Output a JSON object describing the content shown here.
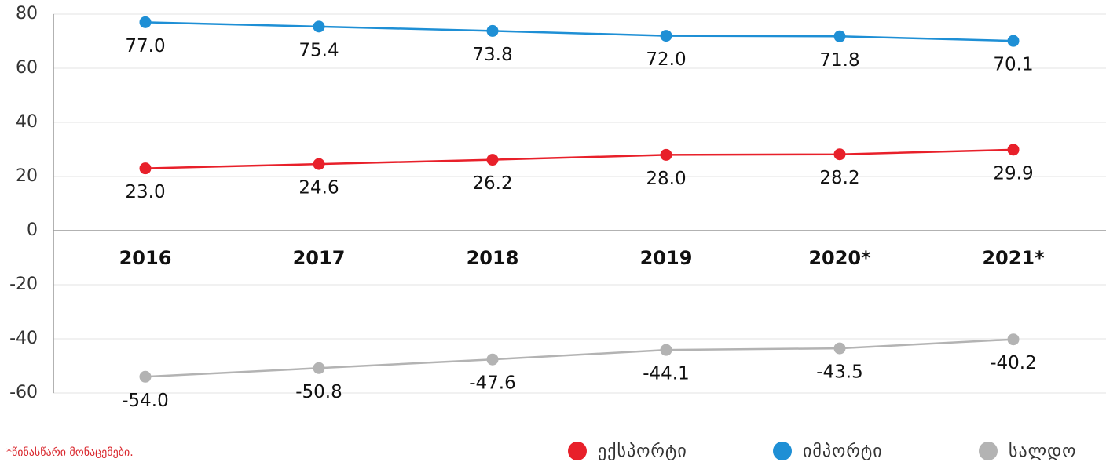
{
  "chart_data": {
    "type": "line",
    "categories": [
      "2016",
      "2017",
      "2018",
      "2019",
      "2020*",
      "2021*"
    ],
    "series": [
      {
        "name": "ექსპორტი",
        "color": "#e8202a",
        "values": [
          23.0,
          24.6,
          26.2,
          28.0,
          28.2,
          29.9
        ],
        "value_labels": [
          "23.0",
          "24.6",
          "26.2",
          "28.0",
          "28.2",
          "29.9"
        ]
      },
      {
        "name": "იმპორტი",
        "color": "#1e8fd5",
        "values": [
          77.0,
          75.4,
          73.8,
          72.0,
          71.8,
          70.1
        ],
        "value_labels": [
          "77.0",
          "75.4",
          "73.8",
          "72.0",
          "71.8",
          "70.1"
        ]
      },
      {
        "name": "სალდო",
        "color": "#b3b3b3",
        "values": [
          -54.0,
          -50.8,
          -47.6,
          -44.1,
          -43.5,
          -40.2
        ],
        "value_labels": [
          "-54.0",
          "-50.8",
          "-47.6",
          "-44.1",
          "-43.5",
          "-40.2"
        ]
      }
    ],
    "ylim": [
      -60,
      80
    ],
    "yticks": [
      80,
      60,
      40,
      20,
      0,
      -20,
      -40,
      -60
    ],
    "grid": true,
    "legend": "bottom-right",
    "footnote": "*წინასწარი მონაცემები."
  }
}
